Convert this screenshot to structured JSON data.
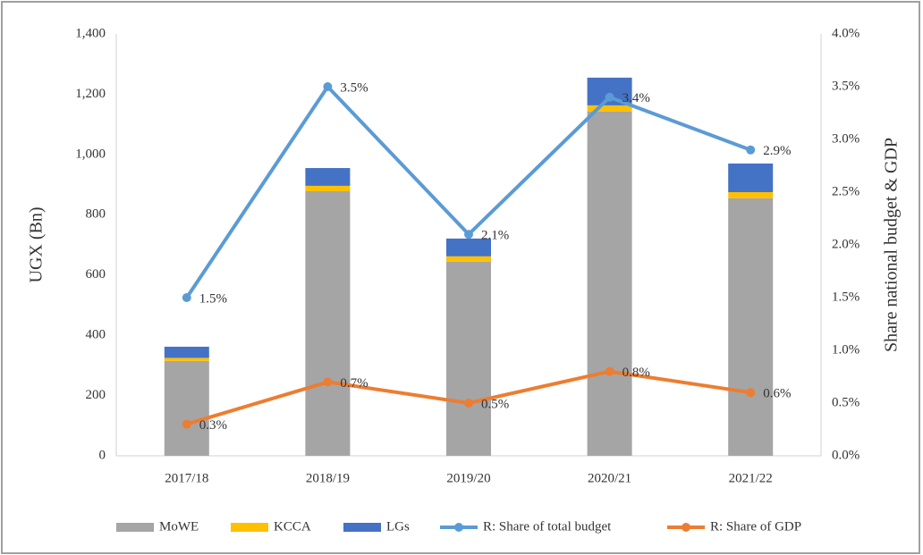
{
  "chart_data": {
    "type": "bar",
    "stacked": true,
    "categories": [
      "2017/18",
      "2018/19",
      "2019/20",
      "2020/21",
      "2021/22"
    ],
    "series": [
      {
        "name": "MoWE",
        "type": "bar",
        "color": "#a5a5a5",
        "values": [
          315,
          878,
          644,
          1142,
          855
        ]
      },
      {
        "name": "KCCA",
        "type": "bar",
        "color": "#ffc000",
        "values": [
          10,
          18,
          18,
          21,
          20
        ]
      },
      {
        "name": "LGs",
        "type": "bar",
        "color": "#4472c4",
        "values": [
          37,
          59,
          59,
          92,
          95
        ]
      },
      {
        "name": "R: Share of total budget",
        "type": "line",
        "axis": "y2",
        "color": "#5b9bd5",
        "values": [
          1.5,
          3.5,
          2.1,
          3.4,
          2.9
        ],
        "value_labels": [
          "1.5%",
          "3.5%",
          "2.1%",
          "3.4%",
          "2.9%"
        ]
      },
      {
        "name": "R: Share of GDP",
        "type": "line",
        "axis": "y2",
        "color": "#ed7d31",
        "values": [
          0.3,
          0.7,
          0.5,
          0.8,
          0.6
        ],
        "value_labels": [
          "0.3%",
          "0.7%",
          "0.5%",
          "0.8%",
          "0.6%"
        ]
      }
    ],
    "ylabel": "UGX (Bn)",
    "y2label": "Share national budget & GDP",
    "ylim": [
      0,
      1400
    ],
    "yticks": [
      0,
      200,
      400,
      600,
      800,
      {
        "value": 1000,
        "label": "1,000"
      },
      {
        "value": 1200,
        "label": "1,200"
      },
      {
        "value": 1400,
        "label": "1,400"
      }
    ],
    "y2lim": [
      0,
      4
    ],
    "y2ticks": [
      {
        "value": 0,
        "label": "0.0%"
      },
      {
        "value": 0.5,
        "label": "0.5%"
      },
      {
        "value": 1,
        "label": "1.0%"
      },
      {
        "value": 1.5,
        "label": "1.5%"
      },
      {
        "value": 2,
        "label": "2.0%"
      },
      {
        "value": 2.5,
        "label": "2.5%"
      },
      {
        "value": 3,
        "label": "3.0%"
      },
      {
        "value": 3.5,
        "label": "3.5%"
      },
      {
        "value": 4,
        "label": "4.0%"
      }
    ],
    "grid": false,
    "legend": "bottom"
  }
}
